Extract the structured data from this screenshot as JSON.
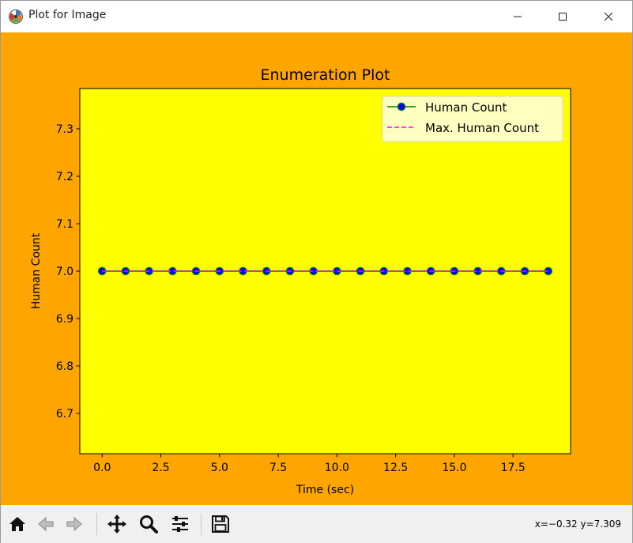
{
  "window": {
    "title": "Plot for Image",
    "controls": [
      "minimize-icon",
      "maximize-icon",
      "close-icon"
    ]
  },
  "colors": {
    "figure_bg": "#ffa500",
    "axes_bg": "#ffff00",
    "human_count_line": "#008000",
    "human_count_marker": "#0000ff",
    "max_line": "#ff00ff"
  },
  "chart_data": {
    "type": "line",
    "title": "Enumeration Plot",
    "xlabel": "Time (sec)",
    "ylabel": "Human Count",
    "xlim": [
      -0.95,
      19.95
    ],
    "ylim": [
      6.615,
      7.385
    ],
    "x_ticks": [
      "0.0",
      "2.5",
      "5.0",
      "7.5",
      "10.0",
      "12.5",
      "15.0",
      "17.5"
    ],
    "x_tick_values": [
      0,
      2.5,
      5,
      7.5,
      10,
      12.5,
      15,
      17.5
    ],
    "y_ticks": [
      "6.7",
      "6.8",
      "6.9",
      "7.0",
      "7.1",
      "7.2",
      "7.3"
    ],
    "y_tick_values": [
      6.7,
      6.8,
      6.9,
      7.0,
      7.1,
      7.2,
      7.3
    ],
    "legend_position": "upper-right",
    "grid": false,
    "series": [
      {
        "name": "Human Count",
        "style": "solid line with circle markers",
        "x": [
          0,
          1,
          2,
          3,
          4,
          5,
          6,
          7,
          8,
          9,
          10,
          11,
          12,
          13,
          14,
          15,
          16,
          17,
          18,
          19
        ],
        "y": [
          7,
          7,
          7,
          7,
          7,
          7,
          7,
          7,
          7,
          7,
          7,
          7,
          7,
          7,
          7,
          7,
          7,
          7,
          7,
          7
        ]
      },
      {
        "name": "Max. Human Count",
        "style": "dashed line",
        "x": [
          0,
          1,
          2,
          3,
          4,
          5,
          6,
          7,
          8,
          9,
          10,
          11,
          12,
          13,
          14,
          15,
          16,
          17,
          18,
          19
        ],
        "y": [
          7,
          7,
          7,
          7,
          7,
          7,
          7,
          7,
          7,
          7,
          7,
          7,
          7,
          7,
          7,
          7,
          7,
          7,
          7,
          7
        ]
      }
    ]
  },
  "toolbar": {
    "buttons": [
      "home-icon",
      "back-icon",
      "forward-icon",
      "pan-icon",
      "zoom-icon",
      "configure-subplots-icon",
      "save-icon"
    ],
    "coords": "x=−0.32 y=7.309"
  }
}
